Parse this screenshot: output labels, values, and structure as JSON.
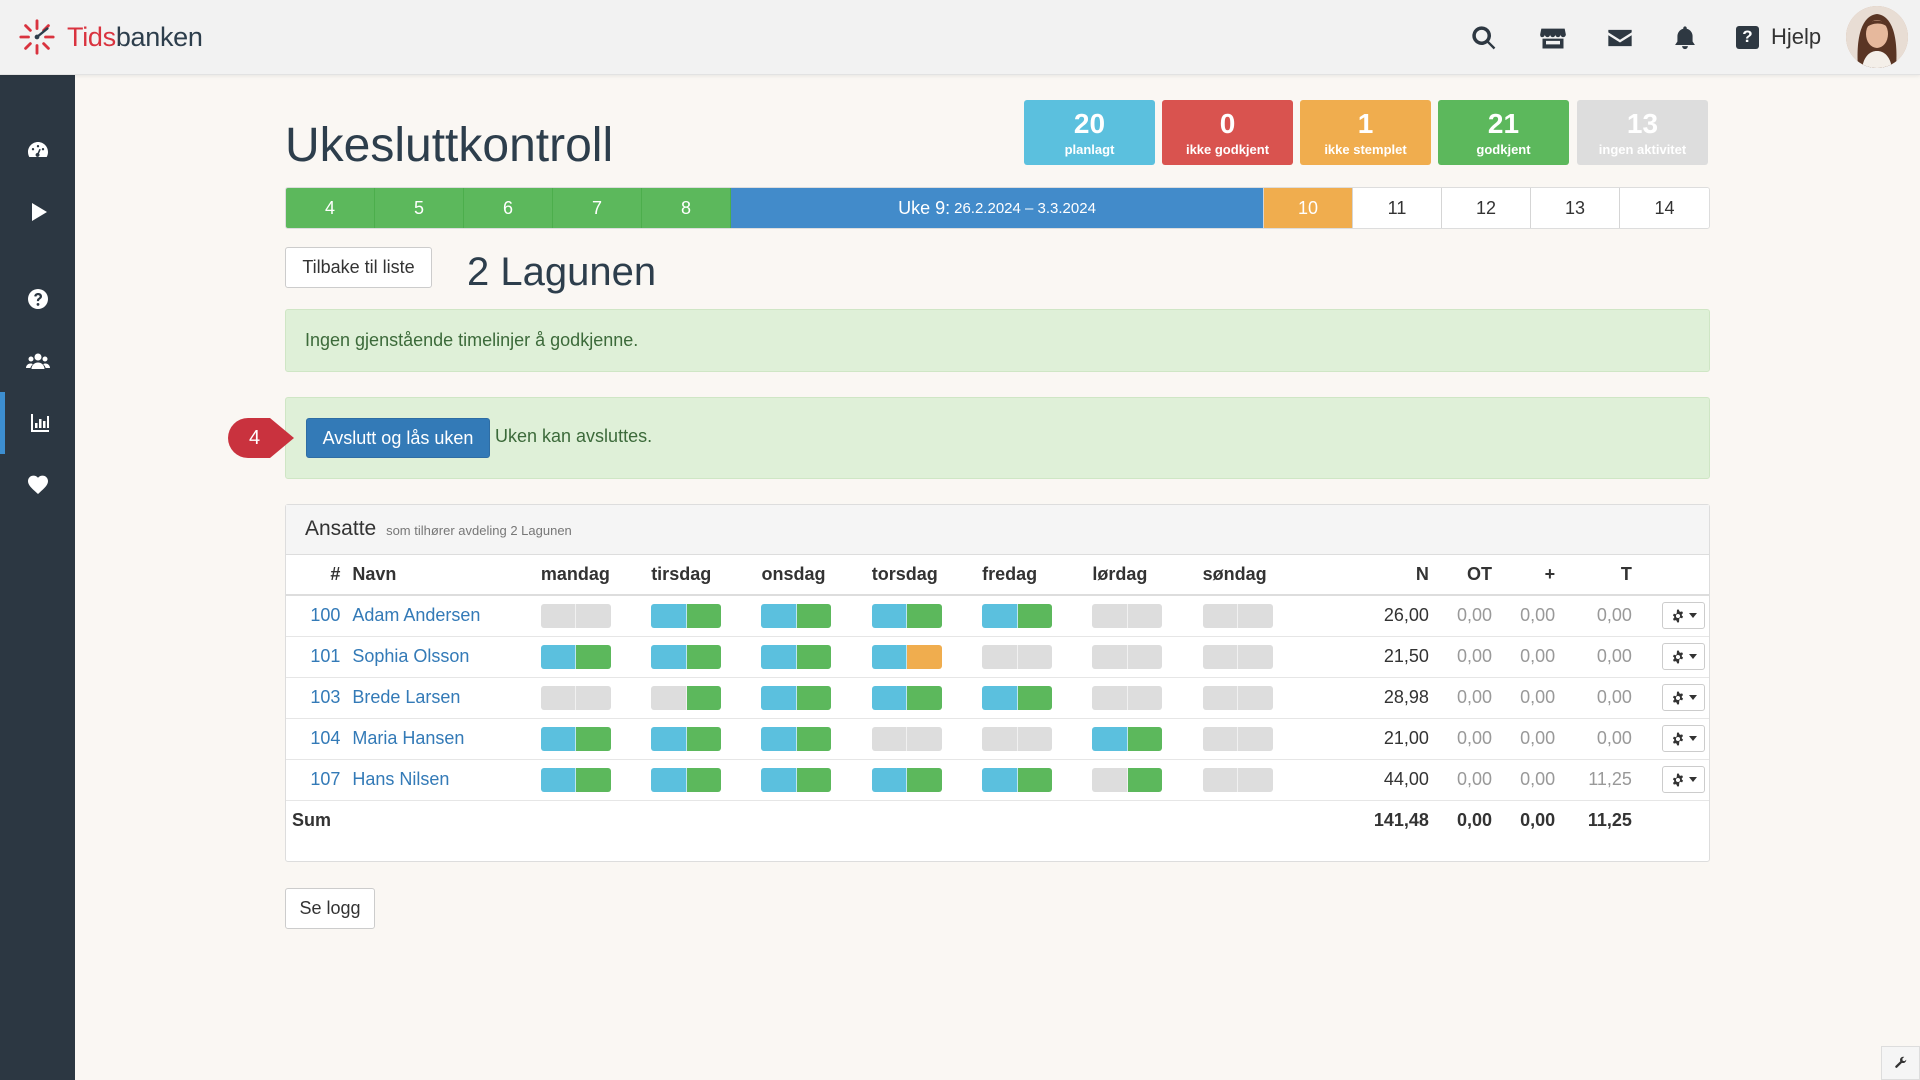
{
  "app": {
    "logo_part1": "Tids",
    "logo_part2": "banken"
  },
  "header": {
    "help_label": "Hjelp"
  },
  "page": {
    "title": "Ukesluttkontroll",
    "department": "2 Lagunen"
  },
  "stats": [
    {
      "num": "20",
      "label": "planlagt",
      "color": "#5bc0de",
      "text_color": "#ffffff"
    },
    {
      "num": "0",
      "label": "ikke godkjent",
      "color": "#d9534f",
      "text_color": "#ffffff"
    },
    {
      "num": "1",
      "label": "ikke stemplet",
      "color": "#f0ad4e",
      "text_color": "#ffffff"
    },
    {
      "num": "21",
      "label": "godkjent",
      "color": "#5cb85c",
      "text_color": "#ffffff"
    },
    {
      "num": "13",
      "label": "ingen aktivitet",
      "color": "#dddddd",
      "text_color": "#ffffff"
    }
  ],
  "weeks": {
    "past": [
      "4",
      "5",
      "6",
      "7",
      "8"
    ],
    "current_label": "Uke 9:",
    "current_range": "26.2.2024 – 3.3.2024",
    "next": "10",
    "future": [
      "11",
      "12",
      "13",
      "14"
    ]
  },
  "buttons": {
    "back": "Tilbake til liste",
    "close_week": "Avslutt og lås uken",
    "log": "Se logg"
  },
  "alerts": {
    "none_remaining": "Ingen gjenstående timelinjer å godkjenne.",
    "can_close": "Uken kan avsluttes."
  },
  "marker": {
    "number": "4"
  },
  "panel": {
    "title": "Ansatte",
    "subtitle": "som tilhører avdeling 2 Lagunen"
  },
  "table": {
    "headers": {
      "num": "#",
      "name": "Navn",
      "N": "N",
      "OT": "OT",
      "plus": "+",
      "T": "T"
    },
    "days": [
      "mandag",
      "tirsdag",
      "onsdag",
      "torsdag",
      "fredag",
      "lørdag",
      "søndag"
    ],
    "status_colors": {
      "gray": "#dddddd",
      "blue": "#5bc0de",
      "green": "#5cb85c",
      "orange": "#f0ad4e"
    },
    "rows": [
      {
        "num": "100",
        "name": "Adam Andersen",
        "days": [
          [
            "gray",
            "gray"
          ],
          [
            "blue",
            "green"
          ],
          [
            "blue",
            "green"
          ],
          [
            "blue",
            "green"
          ],
          [
            "blue",
            "green"
          ],
          [
            "gray",
            "gray"
          ],
          [
            "gray",
            "gray"
          ]
        ],
        "N": "26,00",
        "OT": "0,00",
        "plus": "0,00",
        "T": "0,00"
      },
      {
        "num": "101",
        "name": "Sophia Olsson",
        "days": [
          [
            "blue",
            "green"
          ],
          [
            "blue",
            "green"
          ],
          [
            "blue",
            "green"
          ],
          [
            "blue",
            "orange"
          ],
          [
            "gray",
            "gray"
          ],
          [
            "gray",
            "gray"
          ],
          [
            "gray",
            "gray"
          ]
        ],
        "N": "21,50",
        "OT": "0,00",
        "plus": "0,00",
        "T": "0,00"
      },
      {
        "num": "103",
        "name": "Brede Larsen",
        "days": [
          [
            "gray",
            "gray"
          ],
          [
            "gray",
            "green"
          ],
          [
            "blue",
            "green"
          ],
          [
            "blue",
            "green"
          ],
          [
            "blue",
            "green"
          ],
          [
            "gray",
            "gray"
          ],
          [
            "gray",
            "gray"
          ]
        ],
        "N": "28,98",
        "OT": "0,00",
        "plus": "0,00",
        "T": "0,00"
      },
      {
        "num": "104",
        "name": "Maria Hansen",
        "days": [
          [
            "blue",
            "green"
          ],
          [
            "blue",
            "green"
          ],
          [
            "blue",
            "green"
          ],
          [
            "gray",
            "gray"
          ],
          [
            "gray",
            "gray"
          ],
          [
            "blue",
            "green"
          ],
          [
            "gray",
            "gray"
          ]
        ],
        "N": "21,00",
        "OT": "0,00",
        "plus": "0,00",
        "T": "0,00"
      },
      {
        "num": "107",
        "name": "Hans Nilsen",
        "days": [
          [
            "blue",
            "green"
          ],
          [
            "blue",
            "green"
          ],
          [
            "blue",
            "green"
          ],
          [
            "blue",
            "green"
          ],
          [
            "blue",
            "green"
          ],
          [
            "gray",
            "green"
          ],
          [
            "gray",
            "gray"
          ]
        ],
        "N": "44,00",
        "OT": "0,00",
        "plus": "0,00",
        "T": "11,25"
      }
    ],
    "sum": {
      "label": "Sum",
      "N": "141,48",
      "OT": "0,00",
      "plus": "0,00",
      "T": "11,25"
    }
  }
}
